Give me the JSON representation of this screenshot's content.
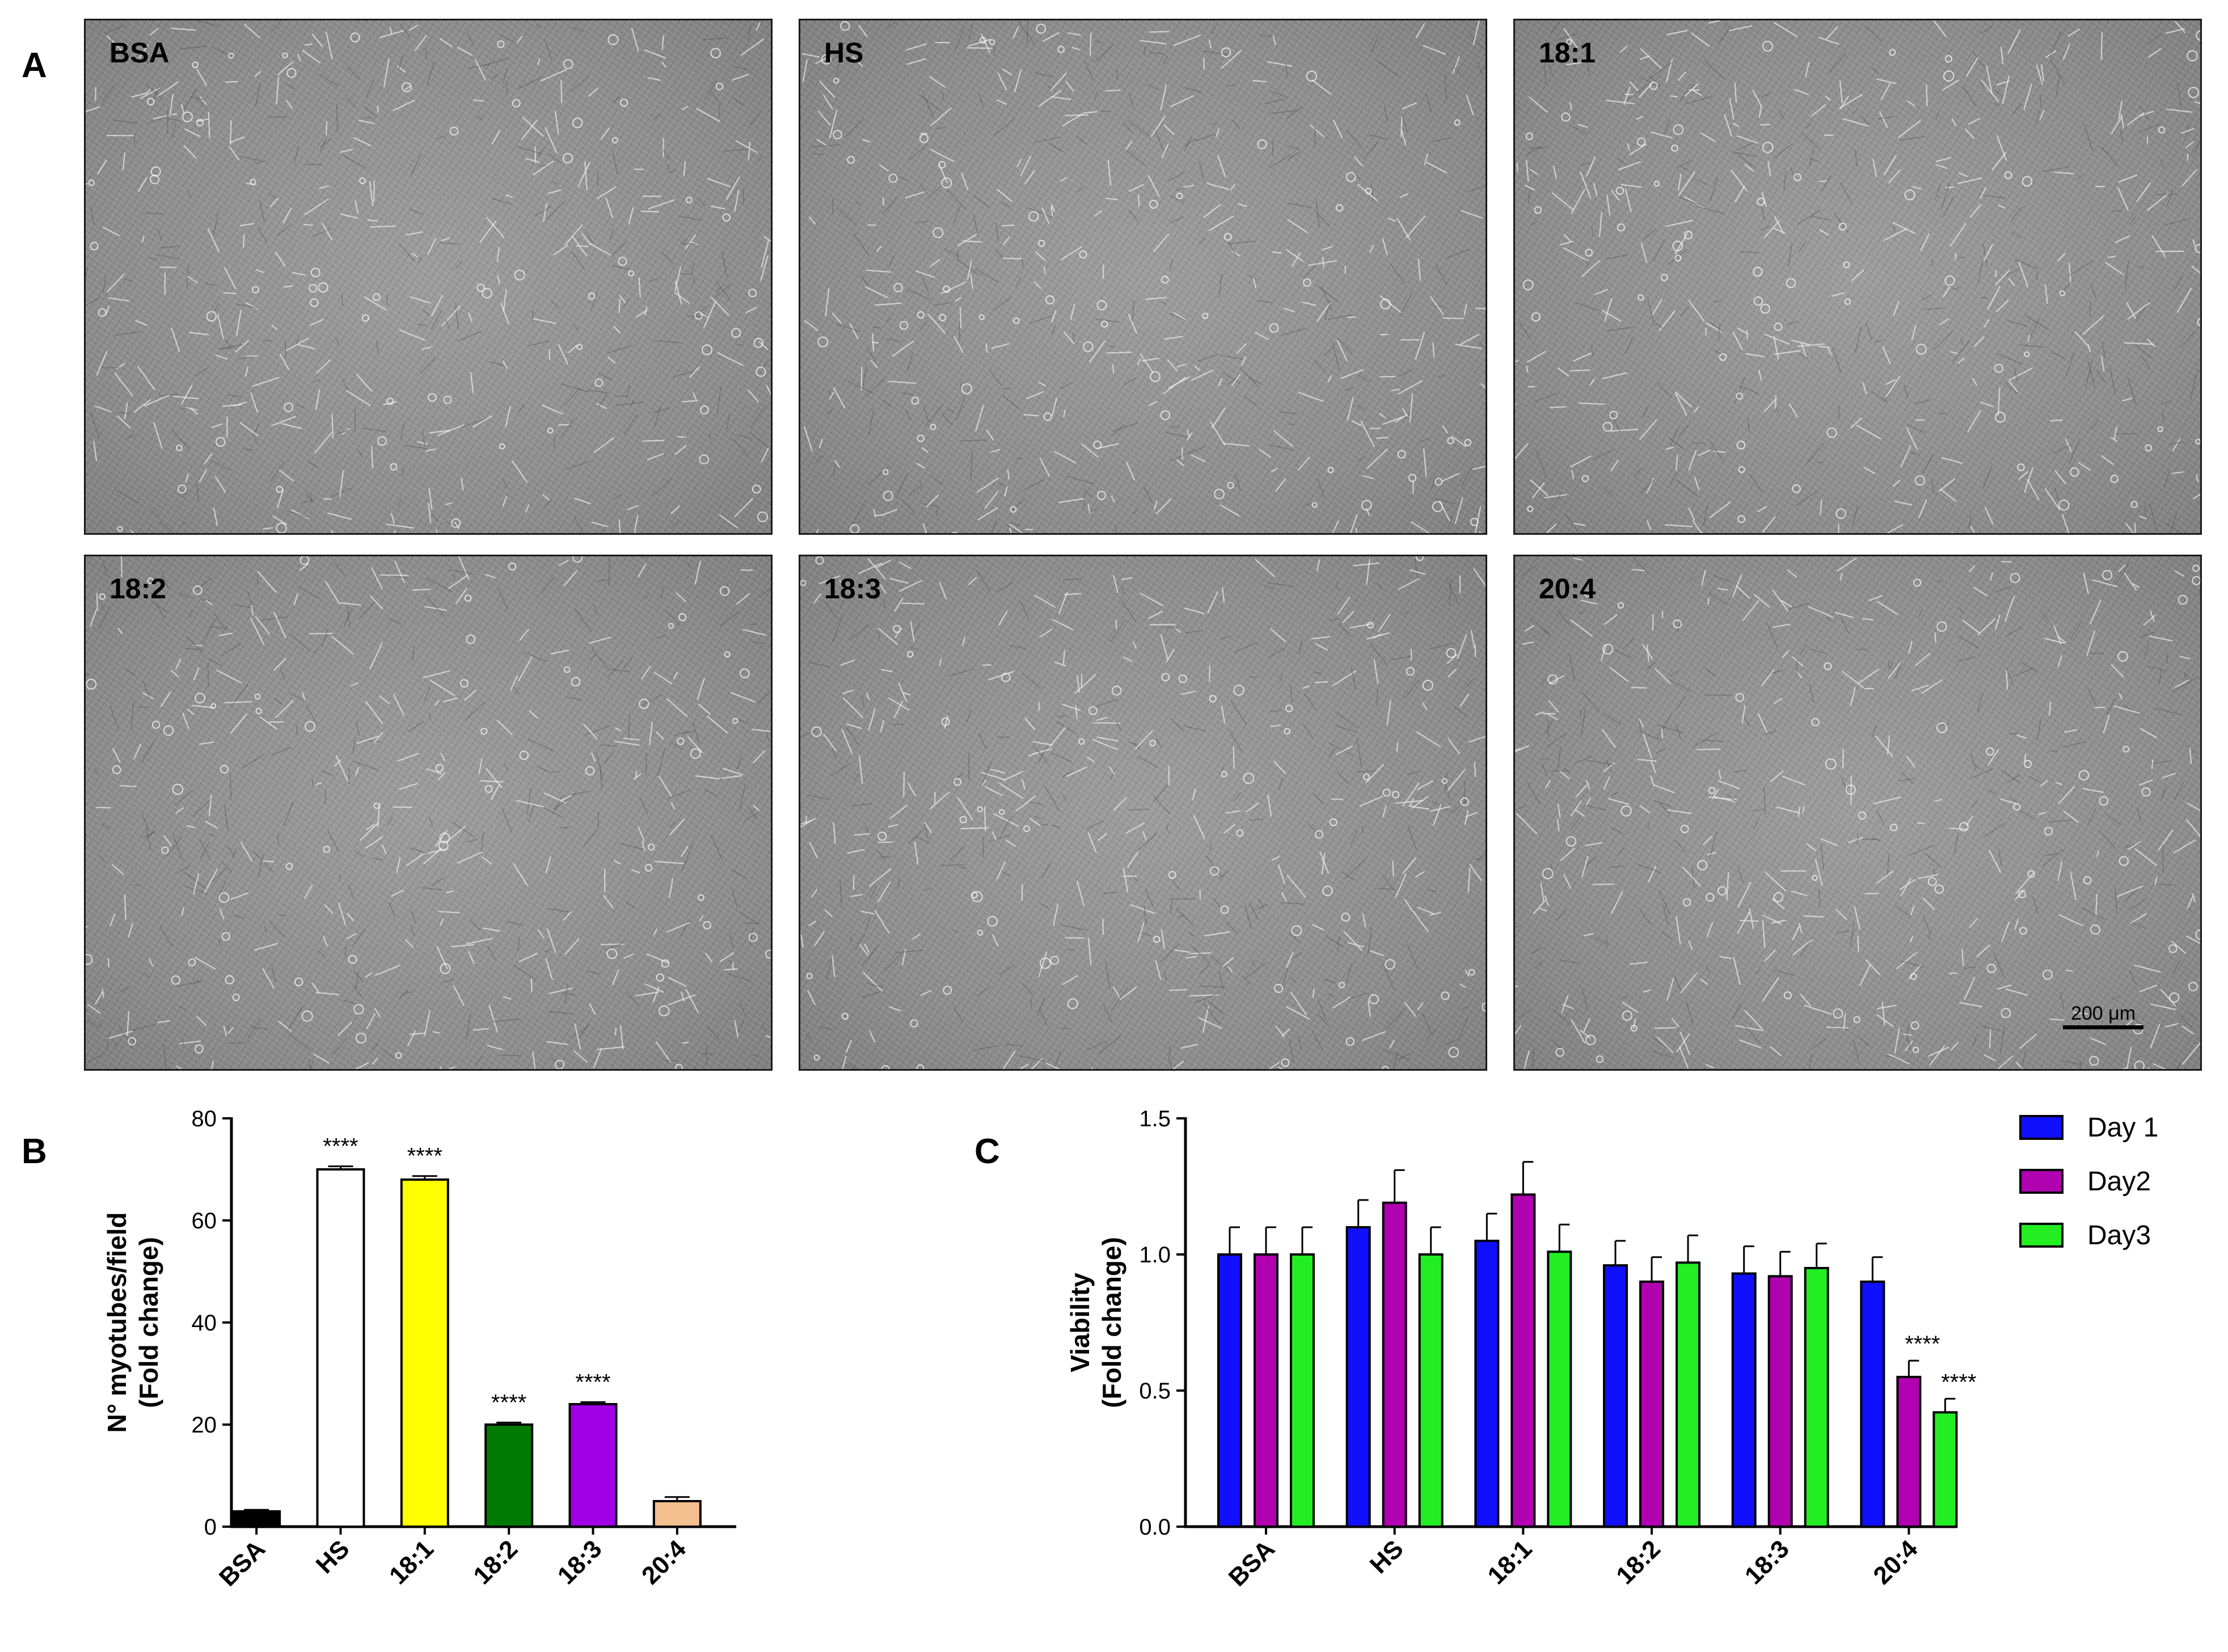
{
  "panels": {
    "A": "A",
    "B": "B",
    "C": "C"
  },
  "micrographs": [
    {
      "label": "BSA"
    },
    {
      "label": "HS"
    },
    {
      "label": "18:1"
    },
    {
      "label": "18:2"
    },
    {
      "label": "18:3"
    },
    {
      "label": "20:4"
    }
  ],
  "scalebar": {
    "label": "200 μm"
  },
  "chart_data": [
    {
      "type": "bar",
      "panel": "B",
      "ylabel_line1": "N° myotubes/field",
      "ylabel_line2": "(Fold change)",
      "categories": [
        "BSA",
        "HS",
        "18:1",
        "18:2",
        "18:3",
        "20:4"
      ],
      "values": [
        3,
        70,
        68,
        20,
        24,
        5
      ],
      "errors": [
        0.3,
        0.6,
        0.7,
        0.4,
        0.4,
        0.8
      ],
      "colors": [
        "#000000",
        "#ffffff",
        "#ffff00",
        "#007a00",
        "#a000e6",
        "#f5c08f"
      ],
      "significance": [
        "",
        "****",
        "****",
        "****",
        "****",
        ""
      ],
      "ylim": [
        0,
        80
      ],
      "yticks": [
        "0",
        "20",
        "40",
        "60",
        "80"
      ]
    },
    {
      "type": "bar",
      "panel": "C",
      "ylabel_line1": "Viability",
      "ylabel_line2": "(Fold change)",
      "categories": [
        "BSA",
        "HS",
        "18:1",
        "18:2",
        "18:3",
        "20:4"
      ],
      "series": [
        {
          "name": "Day 1",
          "color": "#1010ff",
          "values": [
            1.0,
            1.1,
            1.05,
            0.96,
            0.93,
            0.9
          ],
          "errors": [
            0.1,
            0.1,
            0.1,
            0.09,
            0.1,
            0.09
          ],
          "significance": [
            "",
            "",
            "",
            "",
            "",
            ""
          ]
        },
        {
          "name": "Day2",
          "color": "#b000b0",
          "values": [
            1.0,
            1.19,
            1.22,
            0.9,
            0.92,
            0.55
          ],
          "errors": [
            0.1,
            0.12,
            0.12,
            0.09,
            0.09,
            0.06
          ],
          "significance": [
            "",
            "",
            "",
            "",
            "",
            "****"
          ]
        },
        {
          "name": "Day3",
          "color": "#22ee22",
          "values": [
            1.0,
            1.0,
            1.01,
            0.97,
            0.95,
            0.42
          ],
          "errors": [
            0.1,
            0.1,
            0.1,
            0.1,
            0.09,
            0.05
          ],
          "significance": [
            "",
            "",
            "",
            "",
            "",
            "****"
          ]
        }
      ],
      "ylim": [
        0,
        1.5
      ],
      "yticks": [
        "0.0",
        "0.5",
        "1.0",
        "1.5"
      ],
      "legend": "top-right"
    }
  ]
}
